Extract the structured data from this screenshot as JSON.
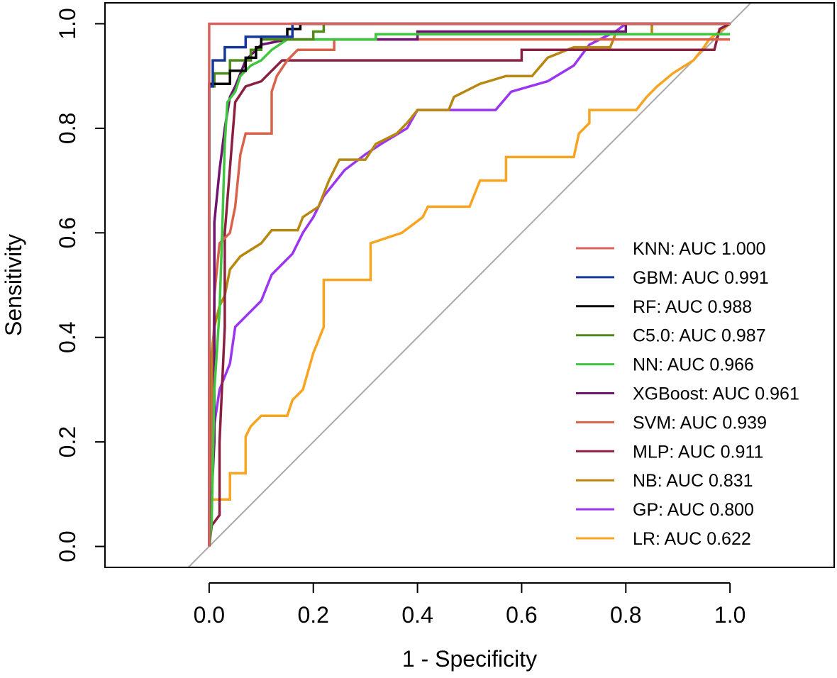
{
  "chart_data": {
    "type": "line",
    "title": "",
    "xlabel": "1 - Specificity",
    "ylabel": "Sensitivity",
    "xlim": [
      -0.2,
      1.2
    ],
    "ylim": [
      -0.04,
      1.04
    ],
    "x_ticks": [
      "0.0",
      "0.2",
      "0.4",
      "0.6",
      "0.8",
      "1.0"
    ],
    "y_ticks": [
      "0.0",
      "0.2",
      "0.4",
      "0.6",
      "0.8",
      "1.0"
    ],
    "reference_line": {
      "name": "chance diagonal",
      "x": [
        -0.2,
        1.2
      ],
      "y": [
        -0.2,
        1.2
      ],
      "color": "#aaaaaa"
    },
    "legend_position": "right",
    "series": [
      {
        "name": "KNN",
        "label": "KNN: AUC 1.000",
        "color": "#d9625c",
        "points": [
          [
            0,
            0
          ],
          [
            0,
            1
          ],
          [
            0.13,
            1
          ],
          [
            1,
            1
          ]
        ]
      },
      {
        "name": "GBM",
        "label": "GBM: AUC 0.991",
        "color": "#13389a",
        "points": [
          [
            0,
            0
          ],
          [
            0,
            0.88
          ],
          [
            0.007,
            0.88
          ],
          [
            0.007,
            0.93
          ],
          [
            0.03,
            0.93
          ],
          [
            0.03,
            0.955
          ],
          [
            0.07,
            0.955
          ],
          [
            0.07,
            0.975
          ],
          [
            0.16,
            0.975
          ],
          [
            0.16,
            1
          ],
          [
            1,
            1
          ]
        ]
      },
      {
        "name": "RF",
        "label": "RF: AUC 0.988",
        "color": "#000000",
        "points": [
          [
            0,
            0
          ],
          [
            0,
            0.885
          ],
          [
            0.04,
            0.885
          ],
          [
            0.04,
            0.91
          ],
          [
            0.07,
            0.91
          ],
          [
            0.07,
            0.935
          ],
          [
            0.09,
            0.935
          ],
          [
            0.09,
            0.955
          ],
          [
            0.1,
            0.955
          ],
          [
            0.1,
            0.975
          ],
          [
            0.15,
            0.975
          ],
          [
            0.15,
            0.99
          ],
          [
            0.175,
            0.99
          ],
          [
            0.175,
            1
          ],
          [
            1,
            1
          ]
        ]
      },
      {
        "name": "C5.0",
        "label": "C5.0: AUC 0.987",
        "color": "#4e8a17",
        "points": [
          [
            0,
            0
          ],
          [
            0,
            0.88
          ],
          [
            0.01,
            0.88
          ],
          [
            0.01,
            0.905
          ],
          [
            0.04,
            0.905
          ],
          [
            0.04,
            0.93
          ],
          [
            0.08,
            0.93
          ],
          [
            0.08,
            0.95
          ],
          [
            0.1,
            0.95
          ],
          [
            0.1,
            0.97
          ],
          [
            0.2,
            0.97
          ],
          [
            0.2,
            0.985
          ],
          [
            0.22,
            0.985
          ],
          [
            0.22,
            1
          ],
          [
            1,
            1
          ]
        ]
      },
      {
        "name": "NN",
        "label": "NN: AUC 0.966",
        "color": "#3fc53f",
        "points": [
          [
            0,
            0
          ],
          [
            0.005,
            0.05
          ],
          [
            0.01,
            0.3
          ],
          [
            0.02,
            0.45
          ],
          [
            0.025,
            0.6
          ],
          [
            0.03,
            0.77
          ],
          [
            0.035,
            0.85
          ],
          [
            0.05,
            0.87
          ],
          [
            0.06,
            0.9
          ],
          [
            0.08,
            0.92
          ],
          [
            0.1,
            0.93
          ],
          [
            0.12,
            0.95
          ],
          [
            0.15,
            0.97
          ],
          [
            0.32,
            0.97
          ],
          [
            0.32,
            0.98
          ],
          [
            1,
            0.98
          ]
        ]
      },
      {
        "name": "XGBoost",
        "label": "XGBoost: AUC 0.961",
        "color": "#6e1570",
        "points": [
          [
            0,
            0
          ],
          [
            0.01,
            0.2
          ],
          [
            0.01,
            0.62
          ],
          [
            0.02,
            0.72
          ],
          [
            0.03,
            0.8
          ],
          [
            0.04,
            0.86
          ],
          [
            0.05,
            0.88
          ],
          [
            0.07,
            0.93
          ],
          [
            0.1,
            0.96
          ],
          [
            0.15,
            0.97
          ],
          [
            0.4,
            0.97
          ],
          [
            0.4,
            0.985
          ],
          [
            0.8,
            0.985
          ],
          [
            0.8,
            1
          ],
          [
            1,
            1
          ]
        ]
      },
      {
        "name": "SVM",
        "label": "SVM: AUC 0.939",
        "color": "#d9624a",
        "points": [
          [
            0,
            0
          ],
          [
            0.005,
            0.15
          ],
          [
            0.01,
            0.48
          ],
          [
            0.02,
            0.58
          ],
          [
            0.04,
            0.6
          ],
          [
            0.05,
            0.65
          ],
          [
            0.06,
            0.75
          ],
          [
            0.07,
            0.79
          ],
          [
            0.12,
            0.79
          ],
          [
            0.12,
            0.87
          ],
          [
            0.13,
            0.9
          ],
          [
            0.15,
            0.93
          ],
          [
            0.17,
            0.95
          ],
          [
            0.24,
            0.95
          ],
          [
            0.24,
            0.97
          ],
          [
            1,
            0.97
          ]
        ]
      },
      {
        "name": "MLP",
        "label": "MLP: AUC 0.911",
        "color": "#8a1f3f",
        "points": [
          [
            0,
            0
          ],
          [
            0.005,
            0.04
          ],
          [
            0.02,
            0.06
          ],
          [
            0.02,
            0.2
          ],
          [
            0.03,
            0.42
          ],
          [
            0.03,
            0.6
          ],
          [
            0.05,
            0.85
          ],
          [
            0.07,
            0.88
          ],
          [
            0.1,
            0.89
          ],
          [
            0.12,
            0.91
          ],
          [
            0.14,
            0.93
          ],
          [
            0.5,
            0.93
          ],
          [
            0.6,
            0.93
          ],
          [
            0.6,
            0.95
          ],
          [
            0.97,
            0.95
          ],
          [
            0.98,
            0.99
          ],
          [
            1,
            1
          ]
        ]
      },
      {
        "name": "NB",
        "label": "NB: AUC 0.831",
        "color": "#b8870f",
        "points": [
          [
            0,
            0
          ],
          [
            0.005,
            0.37
          ],
          [
            0.01,
            0.42
          ],
          [
            0.02,
            0.46
          ],
          [
            0.03,
            0.48
          ],
          [
            0.04,
            0.53
          ],
          [
            0.06,
            0.555
          ],
          [
            0.1,
            0.58
          ],
          [
            0.12,
            0.605
          ],
          [
            0.17,
            0.605
          ],
          [
            0.18,
            0.63
          ],
          [
            0.21,
            0.65
          ],
          [
            0.23,
            0.7
          ],
          [
            0.25,
            0.74
          ],
          [
            0.3,
            0.74
          ],
          [
            0.32,
            0.77
          ],
          [
            0.36,
            0.79
          ],
          [
            0.38,
            0.81
          ],
          [
            0.4,
            0.835
          ],
          [
            0.46,
            0.835
          ],
          [
            0.47,
            0.86
          ],
          [
            0.52,
            0.885
          ],
          [
            0.57,
            0.9
          ],
          [
            0.62,
            0.9
          ],
          [
            0.65,
            0.935
          ],
          [
            0.7,
            0.955
          ],
          [
            0.77,
            0.955
          ],
          [
            0.78,
            0.98
          ],
          [
            0.85,
            0.98
          ],
          [
            0.85,
            1
          ],
          [
            1,
            1
          ]
        ]
      },
      {
        "name": "GP",
        "label": "GP: AUC 0.800",
        "color": "#9b35f0",
        "points": [
          [
            0,
            0
          ],
          [
            0.005,
            0.2
          ],
          [
            0.02,
            0.3
          ],
          [
            0.04,
            0.35
          ],
          [
            0.05,
            0.42
          ],
          [
            0.07,
            0.44
          ],
          [
            0.1,
            0.47
          ],
          [
            0.12,
            0.52
          ],
          [
            0.14,
            0.54
          ],
          [
            0.16,
            0.56
          ],
          [
            0.18,
            0.6
          ],
          [
            0.2,
            0.63
          ],
          [
            0.22,
            0.67
          ],
          [
            0.26,
            0.72
          ],
          [
            0.3,
            0.75
          ],
          [
            0.33,
            0.77
          ],
          [
            0.38,
            0.8
          ],
          [
            0.4,
            0.835
          ],
          [
            0.55,
            0.835
          ],
          [
            0.58,
            0.87
          ],
          [
            0.65,
            0.89
          ],
          [
            0.7,
            0.92
          ],
          [
            0.73,
            0.96
          ],
          [
            0.78,
            0.985
          ],
          [
            0.8,
            1
          ],
          [
            1,
            1
          ]
        ]
      },
      {
        "name": "LR",
        "label": "LR: AUC 0.622",
        "color": "#f7a421",
        "points": [
          [
            0,
            0
          ],
          [
            0.005,
            0.09
          ],
          [
            0.04,
            0.09
          ],
          [
            0.04,
            0.14
          ],
          [
            0.07,
            0.14
          ],
          [
            0.07,
            0.21
          ],
          [
            0.08,
            0.23
          ],
          [
            0.1,
            0.25
          ],
          [
            0.15,
            0.25
          ],
          [
            0.16,
            0.28
          ],
          [
            0.18,
            0.3
          ],
          [
            0.2,
            0.37
          ],
          [
            0.22,
            0.42
          ],
          [
            0.22,
            0.51
          ],
          [
            0.31,
            0.51
          ],
          [
            0.31,
            0.58
          ],
          [
            0.37,
            0.6
          ],
          [
            0.41,
            0.63
          ],
          [
            0.42,
            0.65
          ],
          [
            0.5,
            0.65
          ],
          [
            0.52,
            0.7
          ],
          [
            0.57,
            0.7
          ],
          [
            0.57,
            0.745
          ],
          [
            0.7,
            0.745
          ],
          [
            0.71,
            0.79
          ],
          [
            0.73,
            0.81
          ],
          [
            0.73,
            0.835
          ],
          [
            0.82,
            0.835
          ],
          [
            0.84,
            0.86
          ],
          [
            0.86,
            0.88
          ],
          [
            0.89,
            0.905
          ],
          [
            0.93,
            0.93
          ],
          [
            0.95,
            0.955
          ],
          [
            0.96,
            0.97
          ],
          [
            0.98,
            0.985
          ],
          [
            1,
            1
          ]
        ]
      }
    ]
  }
}
